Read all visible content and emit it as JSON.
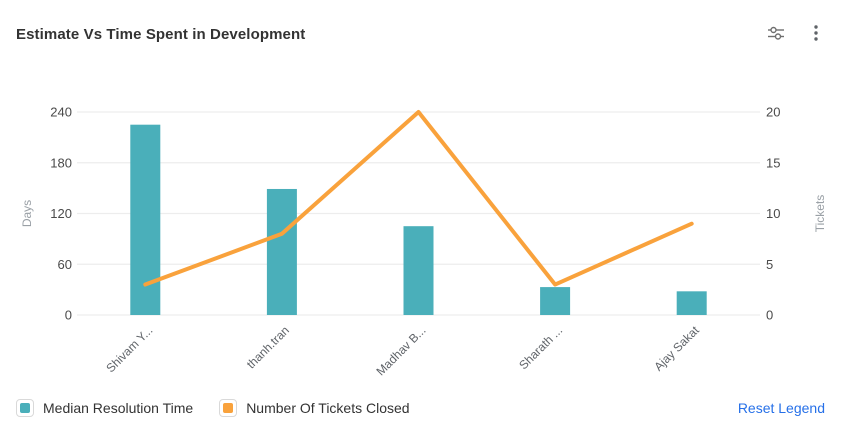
{
  "header": {
    "title": "Estimate Vs Time Spent in Development",
    "filter_icon": "sliders-icon",
    "menu_icon": "kebab-menu-icon"
  },
  "legend": {
    "items": [
      {
        "label": "Median Resolution Time",
        "color": "#4aafba"
      },
      {
        "label": "Number Of Tickets Closed",
        "color": "#f9a23c"
      }
    ],
    "reset_label": "Reset Legend",
    "reset_color": "#2670e8"
  },
  "chart_data": {
    "type": "bar",
    "subtype": "combo-bar-line",
    "title": "Estimate Vs Time Spent in Development",
    "categories": [
      "Shivam Y...",
      "thanh.tran",
      "Madhav B...",
      "Sharath ...",
      "Ajay Sakat"
    ],
    "series": [
      {
        "name": "Median Resolution Time",
        "type": "bar",
        "axis": "left",
        "color": "#4aafba",
        "values": [
          225,
          149,
          105,
          33,
          28
        ]
      },
      {
        "name": "Number Of Tickets Closed",
        "type": "line",
        "axis": "right",
        "color": "#f9a23c",
        "values": [
          3,
          8,
          20,
          3,
          9
        ]
      }
    ],
    "left_axis": {
      "label": "Days",
      "ticks": [
        0,
        60,
        120,
        180,
        240
      ],
      "min": 0,
      "max": 240
    },
    "right_axis": {
      "label": "Tickets",
      "ticks": [
        0,
        5,
        10,
        15,
        20
      ],
      "min": 0,
      "max": 20
    },
    "grid": true,
    "gridline_color": "#ededed",
    "tick_label_color": "#4a4a4a",
    "category_label_color": "#5f6368",
    "axis_name_color": "#9aa0a6",
    "legend_position": "bottom"
  }
}
